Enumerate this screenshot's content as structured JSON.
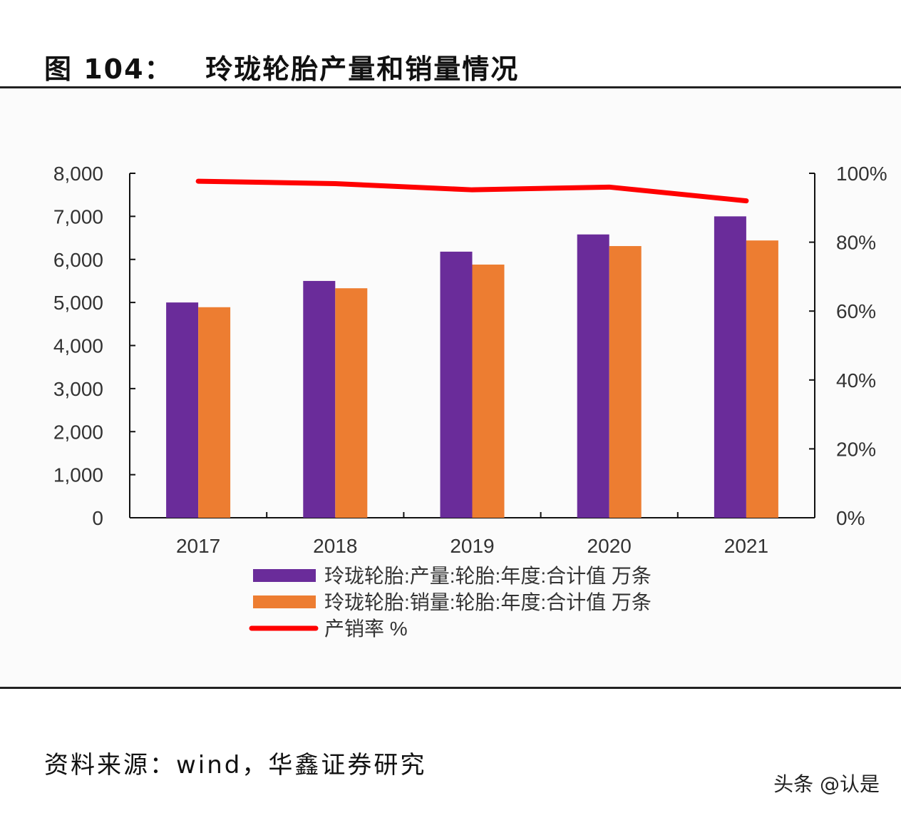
{
  "title": "图 104：   玲珑轮胎产量和销量情况",
  "source": "资料来源：wind，华鑫证券研究",
  "watermark": "头条 @认是",
  "chart_data": {
    "type": "bar",
    "categories": [
      "2017",
      "2018",
      "2019",
      "2020",
      "2021"
    ],
    "series": [
      {
        "name": "玲珑轮胎:产量:轮胎:年度:合计值 万条",
        "type": "bar",
        "axis": "left",
        "color": "#6a2c9a",
        "values": [
          5000,
          5500,
          6180,
          6580,
          7000
        ]
      },
      {
        "name": "玲珑轮胎:销量:轮胎:年度:合计值 万条",
        "type": "bar",
        "axis": "left",
        "color": "#ed7d31",
        "values": [
          4890,
          5330,
          5880,
          6310,
          6440
        ]
      },
      {
        "name": "产销率 %",
        "type": "line",
        "axis": "right",
        "color": "#ff0000",
        "values": [
          97.7,
          97.0,
          95.2,
          96.0,
          92.0
        ]
      }
    ],
    "yleft": {
      "ylim": [
        0,
        8000
      ],
      "ticks": [
        "0",
        "1,000",
        "2,000",
        "3,000",
        "4,000",
        "5,000",
        "6,000",
        "7,000",
        "8,000"
      ]
    },
    "yright": {
      "ylim": [
        0,
        100
      ],
      "ticks": [
        "0%",
        "20%",
        "40%",
        "60%",
        "80%",
        "100%"
      ]
    },
    "legend": "bottom"
  }
}
